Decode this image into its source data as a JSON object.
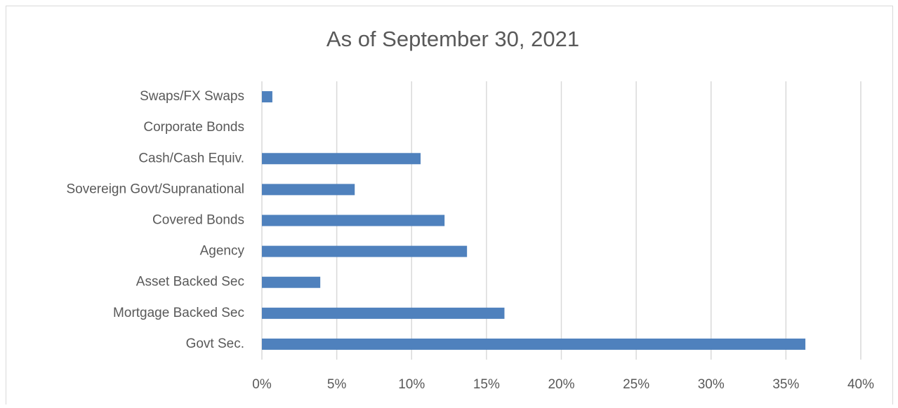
{
  "chart_data": {
    "type": "hbar",
    "title": "As of September 30, 2021",
    "categories": [
      "Swaps/FX Swaps",
      "Corporate Bonds",
      "Cash/Cash Equiv.",
      "Sovereign Govt/Supranational",
      "Covered Bonds",
      "Agency",
      "Asset Backed Sec",
      "Mortgage Backed Sec",
      "Govt Sec."
    ],
    "values": [
      0.7,
      0,
      10.6,
      6.2,
      12.2,
      13.7,
      3.9,
      16.2,
      36.3
    ],
    "color": "#4f81bd",
    "xlim": [
      0,
      40
    ],
    "xticks": [
      {
        "value": 0,
        "label": "0%"
      },
      {
        "value": 5,
        "label": "5%"
      },
      {
        "value": 10,
        "label": "10%"
      },
      {
        "value": 15,
        "label": "15%"
      },
      {
        "value": 20,
        "label": "20%"
      },
      {
        "value": 25,
        "label": "25%"
      },
      {
        "value": 30,
        "label": "30%"
      },
      {
        "value": 35,
        "label": "35%"
      },
      {
        "value": 40,
        "label": "40%"
      }
    ],
    "grid": true
  }
}
